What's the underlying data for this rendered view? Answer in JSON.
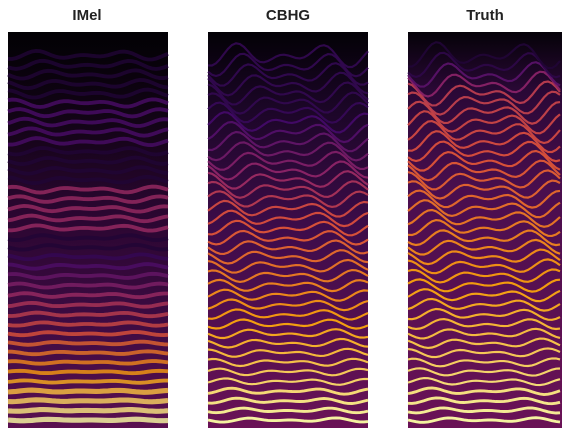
{
  "panels": [
    {
      "title": "IMel"
    },
    {
      "title": "CBHG"
    },
    {
      "title": "Truth"
    }
  ]
}
